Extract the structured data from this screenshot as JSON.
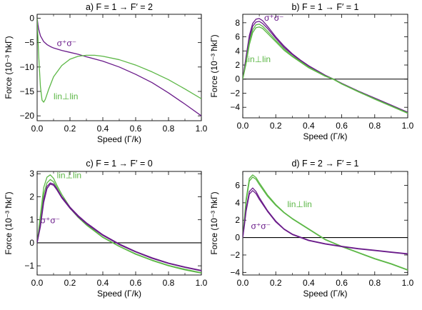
{
  "colors": {
    "purple": "#6a1b8a",
    "green": "#5cb746",
    "axis": "#000000"
  },
  "chart_data": [
    {
      "id": "a",
      "type": "line",
      "title": "a) F = 1 → F′ = 2",
      "xlabel": "Speed (Γ/k)",
      "ylabel": "Force (10⁻³ ħkΓ)",
      "xlim": [
        0,
        1
      ],
      "ylim": [
        -21,
        0.8
      ],
      "xticks": [
        0,
        0.2,
        0.4,
        0.6,
        0.8,
        1.0
      ],
      "xticklabels": [
        "0.0",
        "0.2",
        "0.4",
        "0.6",
        "0.8",
        "1.0"
      ],
      "yticks": [
        0,
        -5,
        -10,
        -15,
        -20
      ],
      "yticklabels": [
        "0",
        "−5",
        "−10",
        "−15",
        "−20"
      ],
      "zero_line": false,
      "annotations": [
        {
          "text": "σ⁺σ⁻",
          "color": "purple",
          "x": 0.12,
          "y": -5.7
        },
        {
          "text": "lin⊥lin",
          "color": "green",
          "x": 0.1,
          "y": -16.6
        }
      ],
      "series": [
        {
          "color": "purple",
          "x": [
            0,
            0.005,
            0.01,
            0.02,
            0.04,
            0.06,
            0.08,
            0.1,
            0.15,
            0.2,
            0.25,
            0.3,
            0.4,
            0.5,
            0.6,
            0.7,
            0.8,
            0.9,
            1.0
          ],
          "y": [
            0,
            -1.3,
            -2.3,
            -3.6,
            -4.8,
            -5.4,
            -5.8,
            -6.1,
            -6.6,
            -7.0,
            -7.4,
            -7.9,
            -8.8,
            -10.0,
            -11.5,
            -13.2,
            -15.3,
            -17.6,
            -20.0
          ]
        },
        {
          "color": "green",
          "x": [
            0,
            0.01,
            0.02,
            0.03,
            0.04,
            0.05,
            0.07,
            0.1,
            0.15,
            0.2,
            0.25,
            0.3,
            0.35,
            0.4,
            0.5,
            0.6,
            0.7,
            0.8,
            0.9,
            1.0
          ],
          "y": [
            0,
            -8,
            -14,
            -16.8,
            -17.2,
            -16.6,
            -14.6,
            -12.0,
            -9.7,
            -8.4,
            -7.8,
            -7.6,
            -7.6,
            -7.8,
            -8.5,
            -9.6,
            -11.0,
            -12.6,
            -14.5,
            -16.5
          ]
        }
      ]
    },
    {
      "id": "b",
      "type": "line",
      "title": "b) F = 1 → F′ = 1",
      "xlabel": "Speed (Γ/k)",
      "ylabel": "Force (10⁻³ ħkΓ)",
      "xlim": [
        0,
        1
      ],
      "ylim": [
        -5.5,
        9.2
      ],
      "xticks": [
        0,
        0.2,
        0.4,
        0.6,
        0.8,
        1.0
      ],
      "xticklabels": [
        "0.0",
        "0.2",
        "0.4",
        "0.6",
        "0.8",
        "1.0"
      ],
      "yticks": [
        8,
        6,
        4,
        2,
        0,
        -2,
        -4
      ],
      "yticklabels": [
        "8",
        "6",
        "4",
        "2",
        "0",
        "−2",
        "−4"
      ],
      "zero_line": true,
      "annotations": [
        {
          "text": "σ⁺σ⁻",
          "color": "purple",
          "x": 0.13,
          "y": 8.3
        },
        {
          "text": "lin⊥lin",
          "color": "green",
          "x": 0.02,
          "y": 2.4
        }
      ],
      "series": [
        {
          "color": "purple",
          "x": [
            0,
            0.02,
            0.04,
            0.06,
            0.08,
            0.1,
            0.12,
            0.15,
            0.2,
            0.25,
            0.3,
            0.35,
            0.4,
            0.5,
            0.55,
            0.6,
            0.7,
            0.8,
            0.9,
            1.0
          ],
          "y": [
            0,
            3.2,
            6.2,
            7.9,
            8.5,
            8.6,
            8.3,
            7.5,
            6.0,
            4.7,
            3.6,
            2.7,
            1.9,
            0.55,
            0,
            -0.6,
            -1.7,
            -2.7,
            -3.7,
            -4.7
          ]
        },
        {
          "color": "purple",
          "x": [
            0,
            0.02,
            0.04,
            0.06,
            0.08,
            0.1,
            0.12,
            0.15,
            0.2,
            0.25,
            0.3,
            0.35,
            0.4,
            0.5,
            0.55,
            0.6,
            0.7,
            0.8,
            0.9,
            1.0
          ],
          "y": [
            0,
            2.8,
            5.7,
            7.5,
            8.1,
            8.2,
            7.9,
            7.2,
            5.8,
            4.5,
            3.5,
            2.6,
            1.8,
            0.5,
            0,
            -0.6,
            -1.7,
            -2.7,
            -3.7,
            -4.75
          ]
        },
        {
          "color": "green",
          "x": [
            0,
            0.02,
            0.04,
            0.06,
            0.08,
            0.1,
            0.12,
            0.15,
            0.2,
            0.25,
            0.3,
            0.35,
            0.4,
            0.5,
            0.55,
            0.6,
            0.7,
            0.8,
            0.9,
            1.0
          ],
          "y": [
            0,
            2.5,
            5.3,
            7.0,
            7.7,
            7.8,
            7.5,
            6.8,
            5.5,
            4.3,
            3.3,
            2.5,
            1.7,
            0.45,
            0,
            -0.65,
            -1.75,
            -2.8,
            -3.8,
            -4.8
          ]
        },
        {
          "color": "green",
          "x": [
            0,
            0.02,
            0.04,
            0.06,
            0.08,
            0.1,
            0.12,
            0.15,
            0.2,
            0.25,
            0.3,
            0.35,
            0.4,
            0.5,
            0.55,
            0.6,
            0.7,
            0.8,
            0.9,
            1.0
          ],
          "y": [
            0,
            2.2,
            4.9,
            6.6,
            7.3,
            7.4,
            7.2,
            6.5,
            5.3,
            4.1,
            3.2,
            2.4,
            1.6,
            0.4,
            -0.05,
            -0.7,
            -1.8,
            -2.85,
            -3.85,
            -4.85
          ]
        }
      ]
    },
    {
      "id": "c",
      "type": "line",
      "title": "c) F = 1 → F′ = 0",
      "xlabel": "Speed (Γ/k)",
      "ylabel": "Force (10⁻³ ħkΓ)",
      "xlim": [
        0,
        1
      ],
      "ylim": [
        -1.4,
        3.1
      ],
      "xticks": [
        0,
        0.2,
        0.4,
        0.6,
        0.8,
        1.0
      ],
      "xticklabels": [
        "0.0",
        "0.2",
        "0.4",
        "0.6",
        "0.8",
        "1.0"
      ],
      "yticks": [
        3,
        2,
        1,
        0,
        -1
      ],
      "yticklabels": [
        "3",
        "2",
        "1",
        "0",
        "−1"
      ],
      "zero_line": true,
      "annotations": [
        {
          "text": "lin⊥lin",
          "color": "green",
          "x": 0.12,
          "y": 2.8
        },
        {
          "text": "σ⁺σ⁻",
          "color": "purple",
          "x": 0.02,
          "y": 0.85
        }
      ],
      "series": [
        {
          "color": "green",
          "x": [
            0,
            0.02,
            0.04,
            0.06,
            0.08,
            0.1,
            0.12,
            0.15,
            0.2,
            0.25,
            0.3,
            0.4,
            0.5,
            0.6,
            0.7,
            0.8,
            0.9,
            1.0
          ],
          "y": [
            0,
            1.2,
            2.4,
            2.85,
            2.95,
            2.8,
            2.5,
            2.1,
            1.55,
            1.15,
            0.8,
            0.25,
            -0.15,
            -0.48,
            -0.75,
            -0.98,
            -1.15,
            -1.3
          ]
        },
        {
          "color": "green",
          "x": [
            0,
            0.02,
            0.04,
            0.06,
            0.08,
            0.1,
            0.12,
            0.15,
            0.2,
            0.25,
            0.3,
            0.4,
            0.5,
            0.6,
            0.7,
            0.8,
            0.9,
            1.0
          ],
          "y": [
            0,
            1.0,
            2.1,
            2.6,
            2.75,
            2.65,
            2.4,
            2.0,
            1.5,
            1.1,
            0.77,
            0.23,
            -0.16,
            -0.5,
            -0.77,
            -1.0,
            -1.18,
            -1.32
          ]
        },
        {
          "color": "purple",
          "x": [
            0,
            0.02,
            0.04,
            0.06,
            0.08,
            0.1,
            0.12,
            0.15,
            0.2,
            0.25,
            0.3,
            0.4,
            0.5,
            0.6,
            0.7,
            0.8,
            0.9,
            1.0
          ],
          "y": [
            0,
            0.8,
            1.9,
            2.45,
            2.6,
            2.55,
            2.35,
            2.0,
            1.55,
            1.18,
            0.87,
            0.35,
            -0.05,
            -0.38,
            -0.65,
            -0.88,
            -1.05,
            -1.2
          ]
        },
        {
          "color": "purple",
          "x": [
            0,
            0.02,
            0.04,
            0.06,
            0.08,
            0.1,
            0.12,
            0.15,
            0.2,
            0.25,
            0.3,
            0.4,
            0.5,
            0.6,
            0.7,
            0.8,
            0.9,
            1.0
          ],
          "y": [
            0,
            0.7,
            1.75,
            2.35,
            2.55,
            2.5,
            2.3,
            1.95,
            1.5,
            1.13,
            0.83,
            0.32,
            -0.08,
            -0.4,
            -0.68,
            -0.9,
            -1.07,
            -1.22
          ]
        }
      ]
    },
    {
      "id": "d",
      "type": "line",
      "title": "d) F = 2 → F′ = 1",
      "xlabel": "Speed (Γ/k)",
      "ylabel": "Force (10⁻³ ħkΓ)",
      "xlim": [
        0,
        1
      ],
      "ylim": [
        -4.3,
        7.6
      ],
      "xticks": [
        0,
        0.2,
        0.4,
        0.6,
        0.8,
        1.0
      ],
      "xticklabels": [
        "0.0",
        "0.2",
        "0.4",
        "0.6",
        "0.8",
        "1.0"
      ],
      "yticks": [
        6,
        4,
        2,
        0,
        -2,
        -4
      ],
      "yticklabels": [
        "6",
        "4",
        "2",
        "0",
        "−2",
        "−4"
      ],
      "zero_line": true,
      "annotations": [
        {
          "text": "lin⊥lin",
          "color": "green",
          "x": 0.27,
          "y": 3.5
        },
        {
          "text": "σ⁺σ⁻",
          "color": "purple",
          "x": 0.05,
          "y": 1.0
        }
      ],
      "series": [
        {
          "color": "green",
          "x": [
            0,
            0.01,
            0.02,
            0.04,
            0.06,
            0.08,
            0.1,
            0.15,
            0.2,
            0.25,
            0.3,
            0.4,
            0.5,
            0.6,
            0.7,
            0.8,
            0.9,
            1.0
          ],
          "y": [
            0,
            2.2,
            4.4,
            6.8,
            7.2,
            6.9,
            6.3,
            4.9,
            3.8,
            2.9,
            2.2,
            1.0,
            -0.2,
            -1.0,
            -1.7,
            -2.4,
            -3.0,
            -3.7
          ]
        },
        {
          "color": "green",
          "x": [
            0,
            0.01,
            0.02,
            0.04,
            0.06,
            0.08,
            0.1,
            0.15,
            0.2,
            0.25,
            0.3,
            0.4,
            0.5,
            0.6,
            0.7,
            0.8,
            0.9,
            1.0
          ],
          "y": [
            0,
            2.0,
            4.1,
            6.5,
            6.95,
            6.7,
            6.1,
            4.75,
            3.7,
            2.85,
            2.15,
            0.95,
            -0.25,
            -1.05,
            -1.75,
            -2.45,
            -3.05,
            -3.75
          ]
        },
        {
          "color": "purple",
          "x": [
            0,
            0.01,
            0.02,
            0.04,
            0.06,
            0.08,
            0.1,
            0.15,
            0.2,
            0.25,
            0.3,
            0.4,
            0.5,
            0.6,
            0.7,
            0.8,
            0.9,
            1.0
          ],
          "y": [
            0,
            1.6,
            3.3,
            5.3,
            5.7,
            5.3,
            4.6,
            3.1,
            1.9,
            1.0,
            0.4,
            -0.3,
            -0.7,
            -1.0,
            -1.25,
            -1.45,
            -1.65,
            -1.85
          ]
        },
        {
          "color": "purple",
          "x": [
            0,
            0.01,
            0.02,
            0.04,
            0.06,
            0.08,
            0.1,
            0.15,
            0.2,
            0.25,
            0.3,
            0.4,
            0.5,
            0.6,
            0.7,
            0.8,
            0.9,
            1.0
          ],
          "y": [
            0,
            1.4,
            3.0,
            5.0,
            5.4,
            5.05,
            4.4,
            3.0,
            1.8,
            0.95,
            0.35,
            -0.35,
            -0.75,
            -1.05,
            -1.3,
            -1.5,
            -1.7,
            -1.9
          ]
        }
      ]
    }
  ]
}
